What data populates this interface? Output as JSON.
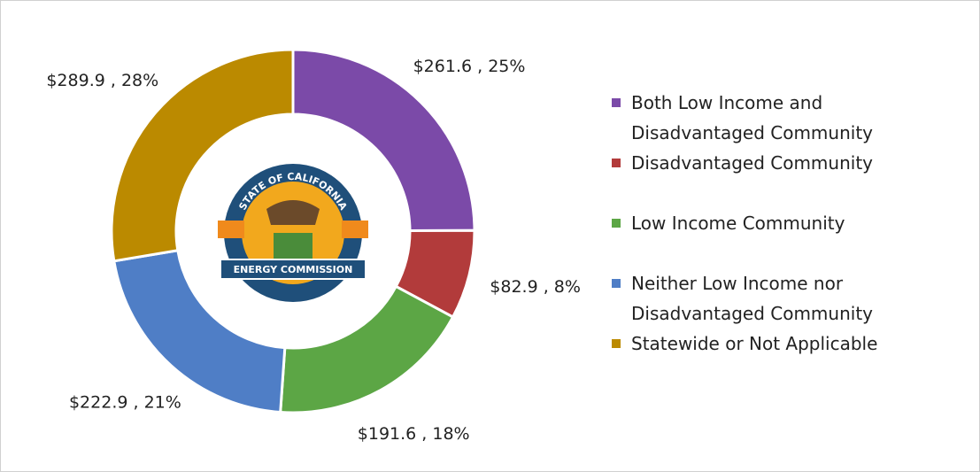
{
  "chart_data": {
    "type": "donut",
    "categories": [
      "Both Low Income and Disadvantaged Community",
      "Disadvantaged Community",
      "Low Income Community",
      "Neither Low Income nor Disadvantaged Community",
      "Statewide or Not Applicable"
    ],
    "values": [
      261.6,
      82.9,
      191.6,
      222.9,
      289.9
    ],
    "value_labels": [
      "$261.6 , 25%",
      "$82.9 , 8%",
      "$191.6 , 18%",
      "$222.9 , 21%",
      "$289.9 , 28%"
    ],
    "colors": [
      "#7b4aa8",
      "#b23b3b",
      "#5ca645",
      "#4f7ec6",
      "#bb8a00"
    ],
    "legend": "right"
  },
  "logo": {
    "top_text": "STATE OF CALIFORNIA",
    "bottom_text": "ENERGY COMMISSION"
  }
}
